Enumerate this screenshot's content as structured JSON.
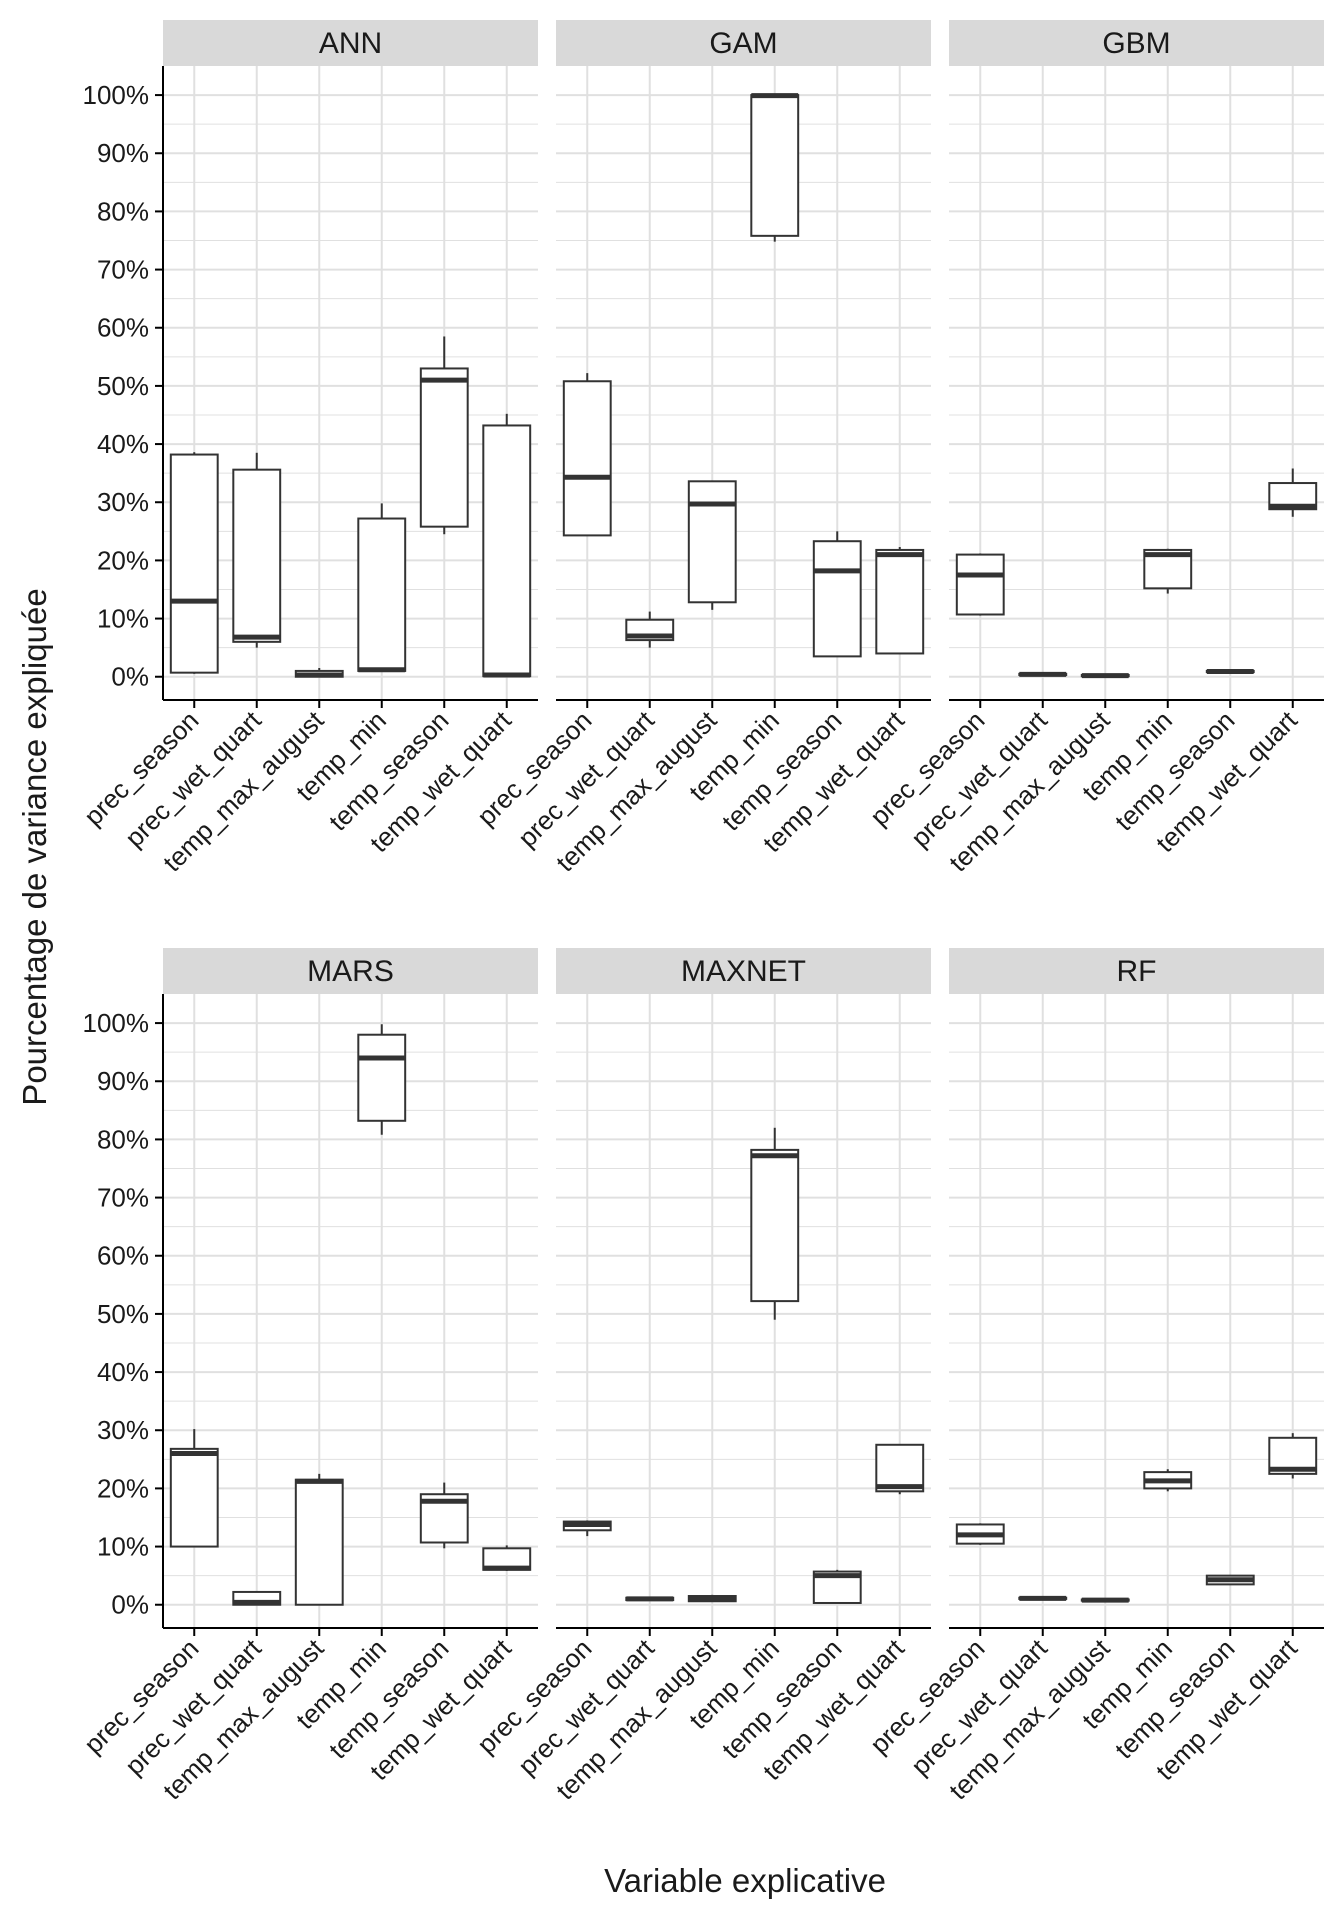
{
  "chart_data": {
    "type": "boxplot",
    "xlabel": "Variable explicative",
    "ylabel": "Pourcentage de variance expliquée",
    "ylim": [
      -0.04,
      1.05
    ],
    "yticks": [
      0,
      0.1,
      0.2,
      0.3,
      0.4,
      0.5,
      0.6,
      0.7,
      0.8,
      0.9,
      1.0
    ],
    "ytick_labels": [
      "0%",
      "10%",
      "20%",
      "30%",
      "40%",
      "50%",
      "60%",
      "70%",
      "80%",
      "90%",
      "100%"
    ],
    "categories": [
      "prec_season",
      "prec_wet_quart",
      "temp_max_august",
      "temp_min",
      "temp_season",
      "temp_wet_quart"
    ],
    "grid": true,
    "colors": {
      "strip": "#d9d9d9",
      "grid": "#e0e0e0",
      "box": "#333333",
      "axis": "#000000"
    },
    "panels": [
      {
        "title": "ANN",
        "boxes": [
          {
            "min": 0.005,
            "q1": 0.007,
            "median": 0.13,
            "q3": 0.382,
            "max": 0.386
          },
          {
            "min": 0.05,
            "q1": 0.06,
            "median": 0.068,
            "q3": 0.356,
            "max": 0.385
          },
          {
            "min": 0.0,
            "q1": 0.0,
            "median": 0.003,
            "q3": 0.01,
            "max": 0.015
          },
          {
            "min": 0.01,
            "q1": 0.01,
            "median": 0.012,
            "q3": 0.272,
            "max": 0.298
          },
          {
            "min": 0.245,
            "q1": 0.258,
            "median": 0.51,
            "q3": 0.53,
            "max": 0.585
          },
          {
            "min": 0.0,
            "q1": 0.001,
            "median": 0.003,
            "q3": 0.432,
            "max": 0.452
          }
        ]
      },
      {
        "title": "GAM",
        "boxes": [
          {
            "min": 0.243,
            "q1": 0.243,
            "median": 0.343,
            "q3": 0.508,
            "max": 0.522
          },
          {
            "min": 0.05,
            "q1": 0.063,
            "median": 0.07,
            "q3": 0.098,
            "max": 0.112
          },
          {
            "min": 0.115,
            "q1": 0.128,
            "median": 0.297,
            "q3": 0.336,
            "max": 0.336
          },
          {
            "min": 0.748,
            "q1": 0.758,
            "median": 0.999,
            "q3": 1.0,
            "max": 1.0
          },
          {
            "min": 0.035,
            "q1": 0.035,
            "median": 0.182,
            "q3": 0.233,
            "max": 0.25
          },
          {
            "min": 0.04,
            "q1": 0.04,
            "median": 0.21,
            "q3": 0.218,
            "max": 0.223
          }
        ]
      },
      {
        "title": "GBM",
        "boxes": [
          {
            "min": 0.105,
            "q1": 0.107,
            "median": 0.175,
            "q3": 0.21,
            "max": 0.212
          },
          {
            "min": 0.002,
            "q1": 0.003,
            "median": 0.004,
            "q3": 0.005,
            "max": 0.005
          },
          {
            "min": 0.0,
            "q1": 0.001,
            "median": 0.002,
            "q3": 0.003,
            "max": 0.003
          },
          {
            "min": 0.143,
            "q1": 0.152,
            "median": 0.21,
            "q3": 0.218,
            "max": 0.22
          },
          {
            "min": 0.007,
            "q1": 0.008,
            "median": 0.009,
            "q3": 0.01,
            "max": 0.01
          },
          {
            "min": 0.275,
            "q1": 0.288,
            "median": 0.293,
            "q3": 0.333,
            "max": 0.358
          }
        ]
      },
      {
        "title": "MARS",
        "boxes": [
          {
            "min": 0.1,
            "q1": 0.1,
            "median": 0.26,
            "q3": 0.268,
            "max": 0.302
          },
          {
            "min": 0.0,
            "q1": 0.0,
            "median": 0.004,
            "q3": 0.022,
            "max": 0.022
          },
          {
            "min": 0.0,
            "q1": 0.0,
            "median": 0.212,
            "q3": 0.215,
            "max": 0.225
          },
          {
            "min": 0.808,
            "q1": 0.832,
            "median": 0.94,
            "q3": 0.98,
            "max": 0.998
          },
          {
            "min": 0.097,
            "q1": 0.107,
            "median": 0.178,
            "q3": 0.19,
            "max": 0.21
          },
          {
            "min": 0.058,
            "q1": 0.06,
            "median": 0.063,
            "q3": 0.097,
            "max": 0.102
          }
        ]
      },
      {
        "title": "MAXNET",
        "boxes": [
          {
            "min": 0.118,
            "q1": 0.128,
            "median": 0.138,
            "q3": 0.143,
            "max": 0.145
          },
          {
            "min": 0.008,
            "q1": 0.008,
            "median": 0.01,
            "q3": 0.012,
            "max": 0.012
          },
          {
            "min": 0.005,
            "q1": 0.006,
            "median": 0.01,
            "q3": 0.015,
            "max": 0.017
          },
          {
            "min": 0.49,
            "q1": 0.522,
            "median": 0.772,
            "q3": 0.782,
            "max": 0.82
          },
          {
            "min": 0.003,
            "q1": 0.003,
            "median": 0.05,
            "q3": 0.057,
            "max": 0.06
          },
          {
            "min": 0.19,
            "q1": 0.195,
            "median": 0.203,
            "q3": 0.275,
            "max": 0.275
          }
        ]
      },
      {
        "title": "RF",
        "boxes": [
          {
            "min": 0.103,
            "q1": 0.105,
            "median": 0.12,
            "q3": 0.138,
            "max": 0.14
          },
          {
            "min": 0.009,
            "q1": 0.01,
            "median": 0.011,
            "q3": 0.012,
            "max": 0.012
          },
          {
            "min": 0.006,
            "q1": 0.007,
            "median": 0.008,
            "q3": 0.009,
            "max": 0.009
          },
          {
            "min": 0.195,
            "q1": 0.2,
            "median": 0.213,
            "q3": 0.228,
            "max": 0.233
          },
          {
            "min": 0.035,
            "q1": 0.035,
            "median": 0.043,
            "q3": 0.05,
            "max": 0.05
          },
          {
            "min": 0.217,
            "q1": 0.225,
            "median": 0.233,
            "q3": 0.287,
            "max": 0.295
          }
        ]
      }
    ]
  }
}
